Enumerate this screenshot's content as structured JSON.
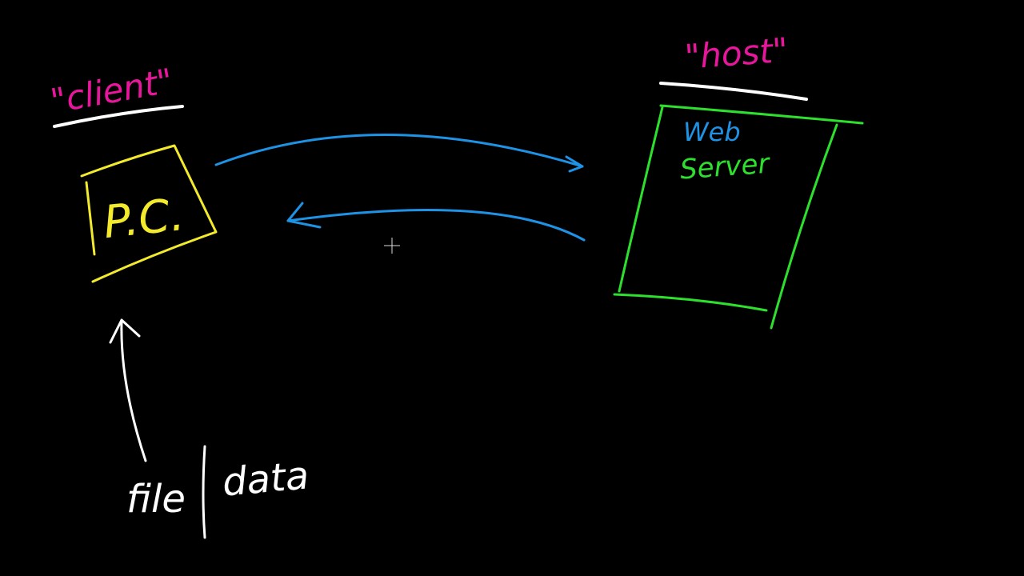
{
  "colors": {
    "background": "#000000",
    "label": "#e8169c",
    "underline": "#ffffff",
    "client_box": "#f2ea2a",
    "host_box": "#2de02d",
    "arrow": "#1e93e6",
    "web_text": "#1e93e6",
    "server_text": "#2de02d",
    "annotation": "#ffffff"
  },
  "client": {
    "label": "\"client\"",
    "device": "P.C."
  },
  "host": {
    "label": "\"host\"",
    "line1": "Web",
    "line2": "Server"
  },
  "annotation": {
    "left": "file",
    "right": "data"
  },
  "cursor": "crosshair-cursor"
}
